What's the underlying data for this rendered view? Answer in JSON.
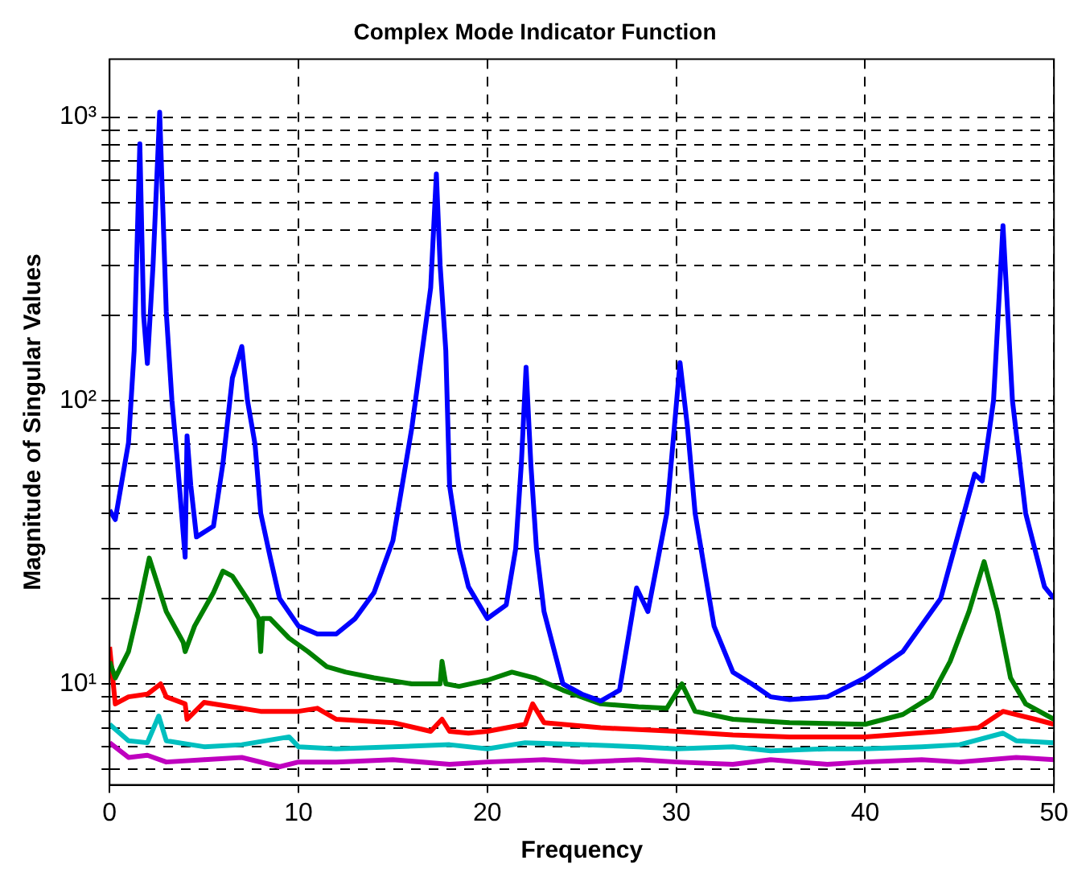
{
  "chart_data": {
    "type": "line",
    "title": "Complex Mode Indicator Function",
    "xlabel": "Frequency",
    "ylabel": "Magnitude of Singular Values",
    "log": "y",
    "grid": true,
    "marker": "none",
    "line_style": "solid",
    "legend": false,
    "xlim": [
      0,
      50
    ],
    "xticks": [
      0,
      10,
      20,
      30,
      40,
      50
    ],
    "ylim": [
      4.4,
      1600
    ],
    "yticks": [
      {
        "value": 5,
        "label": null
      },
      {
        "value": 6,
        "label": null
      },
      {
        "value": 7,
        "label": null
      },
      {
        "value": 8,
        "label": null
      },
      {
        "value": 9,
        "label": null
      },
      {
        "value": 10,
        "label": "10¹"
      },
      {
        "value": 20,
        "label": null
      },
      {
        "value": 30,
        "label": null
      },
      {
        "value": 40,
        "label": null
      },
      {
        "value": 50,
        "label": null
      },
      {
        "value": 60,
        "label": null
      },
      {
        "value": 70,
        "label": null
      },
      {
        "value": 80,
        "label": null
      },
      {
        "value": 90,
        "label": null
      },
      {
        "value": 100,
        "label": "10²"
      },
      {
        "value": 200,
        "label": null
      },
      {
        "value": 300,
        "label": null
      },
      {
        "value": 400,
        "label": null
      },
      {
        "value": 500,
        "label": null
      },
      {
        "value": 600,
        "label": null
      },
      {
        "value": 700,
        "label": null
      },
      {
        "value": 800,
        "label": null
      },
      {
        "value": 900,
        "label": null
      },
      {
        "value": 1000,
        "label": "10³"
      }
    ],
    "series": [
      {
        "color": "#0000ff",
        "x": [
          0,
          0.3,
          1,
          1.3,
          1.6,
          1.8,
          2.0,
          2.3,
          2.65,
          3.0,
          3.3,
          3.6,
          4.0,
          4.1,
          4.3,
          4.6,
          5.5,
          6,
          6.5,
          7,
          7.3,
          7.7,
          8,
          8.5,
          9,
          10,
          11,
          12,
          13,
          14,
          15,
          16,
          17,
          17.3,
          17.5,
          17.8,
          18,
          18.5,
          19,
          20,
          21,
          21.5,
          21.8,
          22.05,
          22.3,
          22.6,
          23,
          24,
          25,
          26,
          27,
          27.9,
          28.5,
          29.5,
          30.2,
          30.6,
          31,
          32,
          33,
          34,
          35,
          36,
          38,
          40,
          42,
          44,
          45,
          45.8,
          46.2,
          46.8,
          47.3,
          47.8,
          48.5,
          49.5,
          50
        ],
        "values": [
          41,
          38,
          71,
          150,
          805,
          200,
          135,
          300,
          1040,
          205,
          100,
          60,
          28,
          75,
          50,
          33,
          36,
          60,
          120,
          155,
          100,
          70,
          40,
          28,
          20,
          16,
          15,
          15,
          17,
          21,
          32,
          80,
          250,
          630,
          300,
          150,
          50,
          30,
          22,
          17,
          19,
          30,
          60,
          131,
          60,
          30,
          18,
          10,
          9.2,
          8.7,
          9.5,
          21.8,
          18,
          40,
          136,
          80,
          40,
          16,
          11,
          10,
          9,
          8.8,
          9,
          10.5,
          13,
          20,
          35,
          55,
          52,
          100,
          414,
          100,
          40,
          22,
          20
        ]
      },
      {
        "color": "#008000",
        "x": [
          0,
          0.3,
          1,
          1.5,
          2.1,
          3,
          3.9,
          4.0,
          4.5,
          5.5,
          6,
          6.5,
          7.5,
          7.9,
          8.0,
          8.1,
          8.5,
          9.5,
          10.5,
          11.5,
          12.5,
          14,
          16,
          17.5,
          17.6,
          17.8,
          18.5,
          20,
          21.3,
          22.5,
          24,
          26,
          28,
          29.5,
          30.3,
          31,
          33,
          36,
          40,
          42,
          43.5,
          44.5,
          45.5,
          46.3,
          47,
          47.7,
          48.5,
          50
        ],
        "values": [
          12,
          10.5,
          13,
          18,
          27.8,
          18,
          14,
          13,
          16,
          21,
          25,
          24,
          19,
          17,
          13,
          17,
          17,
          14.5,
          13,
          11.5,
          11,
          10.5,
          10,
          10,
          12,
          10,
          9.8,
          10.3,
          11,
          10.5,
          9.5,
          8.5,
          8.3,
          8.2,
          10,
          8,
          7.5,
          7.3,
          7.2,
          7.8,
          9,
          12,
          18,
          27,
          18,
          10.5,
          8.5,
          7.5
        ]
      },
      {
        "color": "#ff0000",
        "x": [
          0,
          0.3,
          1,
          2,
          2.7,
          3,
          4,
          4.1,
          5,
          8,
          10,
          11,
          12,
          15,
          17,
          17.6,
          18,
          19,
          20,
          22,
          22.4,
          23,
          26,
          30,
          33,
          36,
          40,
          44,
          46,
          47.3,
          49,
          50
        ],
        "values": [
          13.5,
          8.5,
          9,
          9.2,
          10,
          9,
          8.5,
          7.5,
          8.6,
          8,
          8,
          8.2,
          7.5,
          7.3,
          6.8,
          7.5,
          6.8,
          6.7,
          6.8,
          7.2,
          8.5,
          7.3,
          7,
          6.8,
          6.6,
          6.5,
          6.5,
          6.8,
          7,
          8,
          7.5,
          7.2
        ]
      },
      {
        "color": "#00bfbf",
        "x": [
          0,
          1,
          2,
          2.6,
          3,
          5,
          7,
          9.5,
          10,
          12,
          15,
          18,
          20,
          22,
          25,
          28,
          30,
          33,
          35,
          38,
          40,
          43,
          45,
          47.3,
          48,
          50
        ],
        "values": [
          7.2,
          6.3,
          6.2,
          7.7,
          6.3,
          6.0,
          6.1,
          6.5,
          6.0,
          5.9,
          6.0,
          6.1,
          5.9,
          6.2,
          6.1,
          6.0,
          5.9,
          6.0,
          5.8,
          5.9,
          5.9,
          6.0,
          6.1,
          6.7,
          6.3,
          6.2
        ]
      },
      {
        "color": "#bf00bf",
        "x": [
          0,
          1,
          2,
          3,
          5,
          7,
          9,
          10,
          12,
          15,
          18,
          20,
          23,
          25,
          28,
          30,
          33,
          35,
          38,
          40,
          43,
          45,
          48,
          50
        ],
        "values": [
          6.2,
          5.5,
          5.6,
          5.3,
          5.4,
          5.5,
          5.1,
          5.3,
          5.3,
          5.4,
          5.2,
          5.3,
          5.4,
          5.3,
          5.4,
          5.3,
          5.2,
          5.4,
          5.2,
          5.3,
          5.4,
          5.3,
          5.5,
          5.4
        ]
      }
    ]
  }
}
